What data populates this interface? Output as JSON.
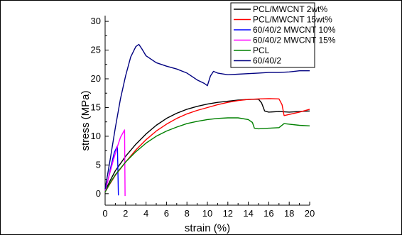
{
  "chart_data": {
    "type": "line",
    "xlabel": "strain (%)",
    "ylabel": "stress (MPa)",
    "xlim": [
      0,
      20
    ],
    "ylim": [
      -2,
      31
    ],
    "xticks": [
      0,
      2,
      4,
      6,
      8,
      10,
      12,
      14,
      16,
      18,
      20
    ],
    "yticks": [
      0,
      5,
      10,
      15,
      20,
      25,
      30
    ],
    "grid": false,
    "legend_position": "top-right",
    "series": [
      {
        "name": "PCL/MWCNT 2wt%",
        "color": "#000000",
        "points": [
          [
            0,
            0.5
          ],
          [
            0.5,
            2.3
          ],
          [
            1,
            4.0
          ],
          [
            2,
            6.5
          ],
          [
            3,
            8.6
          ],
          [
            4,
            10.4
          ],
          [
            5,
            11.9
          ],
          [
            6,
            13.1
          ],
          [
            7,
            14.0
          ],
          [
            8,
            14.7
          ],
          [
            9,
            15.2
          ],
          [
            10,
            15.6
          ],
          [
            11,
            15.9
          ],
          [
            12,
            16.1
          ],
          [
            13,
            16.3
          ],
          [
            14,
            16.4
          ],
          [
            15,
            16.45
          ],
          [
            15.3,
            15.8
          ],
          [
            15.6,
            14.4
          ],
          [
            16,
            14.2
          ],
          [
            17,
            14.3
          ],
          [
            18,
            14.2
          ],
          [
            19,
            14.3
          ],
          [
            20,
            14.4
          ]
        ]
      },
      {
        "name": "PCL/MWCNT 15wt%",
        "color": "#ff0000",
        "points": [
          [
            0,
            0.3
          ],
          [
            0.5,
            1.8
          ],
          [
            1,
            3.2
          ],
          [
            2,
            5.5
          ],
          [
            3,
            7.6
          ],
          [
            4,
            9.4
          ],
          [
            5,
            10.9
          ],
          [
            6,
            12.1
          ],
          [
            7,
            13.1
          ],
          [
            8,
            13.9
          ],
          [
            9,
            14.5
          ],
          [
            10,
            15.0
          ],
          [
            11,
            15.5
          ],
          [
            12,
            15.9
          ],
          [
            13,
            16.2
          ],
          [
            14,
            16.4
          ],
          [
            15,
            16.5
          ],
          [
            16,
            16.55
          ],
          [
            17,
            16.5
          ],
          [
            17.3,
            15.5
          ],
          [
            17.5,
            13.6
          ],
          [
            18,
            13.8
          ],
          [
            19,
            14.2
          ],
          [
            20,
            14.7
          ]
        ]
      },
      {
        "name": "60/40/2 MWCNT 10%",
        "color": "#0000ff",
        "points": [
          [
            0,
            0.5
          ],
          [
            0.3,
            2.5
          ],
          [
            0.6,
            5.0
          ],
          [
            0.9,
            7.2
          ],
          [
            1.2,
            8.3
          ],
          [
            1.3,
            -0.3
          ]
        ]
      },
      {
        "name": "60/40/2 MWCNT 15%",
        "color": "#ff00ff",
        "points": [
          [
            0,
            0.5
          ],
          [
            0.4,
            3.2
          ],
          [
            0.8,
            5.8
          ],
          [
            1.2,
            8.2
          ],
          [
            1.5,
            9.8
          ],
          [
            1.9,
            11.1
          ],
          [
            1.95,
            -0.4
          ]
        ]
      },
      {
        "name": "PCL",
        "color": "#008000",
        "points": [
          [
            0,
            0.3
          ],
          [
            0.5,
            1.9
          ],
          [
            1,
            3.3
          ],
          [
            2,
            5.5
          ],
          [
            3,
            7.3
          ],
          [
            4,
            8.8
          ],
          [
            5,
            10.0
          ],
          [
            6,
            10.9
          ],
          [
            7,
            11.6
          ],
          [
            8,
            12.2
          ],
          [
            9,
            12.6
          ],
          [
            10,
            12.9
          ],
          [
            11,
            13.1
          ],
          [
            12,
            13.2
          ],
          [
            13,
            13.2
          ],
          [
            14,
            12.9
          ],
          [
            14.4,
            12.4
          ],
          [
            14.6,
            11.4
          ],
          [
            15,
            11.3
          ],
          [
            16,
            11.4
          ],
          [
            17,
            11.5
          ],
          [
            17.5,
            12.2
          ],
          [
            18,
            12.1
          ],
          [
            19,
            11.9
          ],
          [
            20,
            11.8
          ]
        ]
      },
      {
        "name": "60/40/2",
        "color": "#000080",
        "points": [
          [
            0,
            0.8
          ],
          [
            0.5,
            6.0
          ],
          [
            1,
            11.5
          ],
          [
            1.5,
            16.5
          ],
          [
            2,
            20.5
          ],
          [
            2.5,
            23.8
          ],
          [
            3,
            25.6
          ],
          [
            3.3,
            26.0
          ],
          [
            3.6,
            25.2
          ],
          [
            4,
            24.0
          ],
          [
            5,
            22.8
          ],
          [
            6,
            22.2
          ],
          [
            7,
            21.7
          ],
          [
            8,
            21.0
          ],
          [
            9,
            19.8
          ],
          [
            9.7,
            19.2
          ],
          [
            10,
            18.8
          ],
          [
            10.3,
            20.5
          ],
          [
            10.6,
            21.3
          ],
          [
            11,
            21.0
          ],
          [
            12,
            20.7
          ],
          [
            13,
            20.8
          ],
          [
            14,
            20.9
          ],
          [
            15,
            21.0
          ],
          [
            16,
            21.1
          ],
          [
            17,
            21.1
          ],
          [
            18,
            21.2
          ],
          [
            19,
            21.4
          ],
          [
            20,
            21.4
          ]
        ]
      }
    ]
  }
}
